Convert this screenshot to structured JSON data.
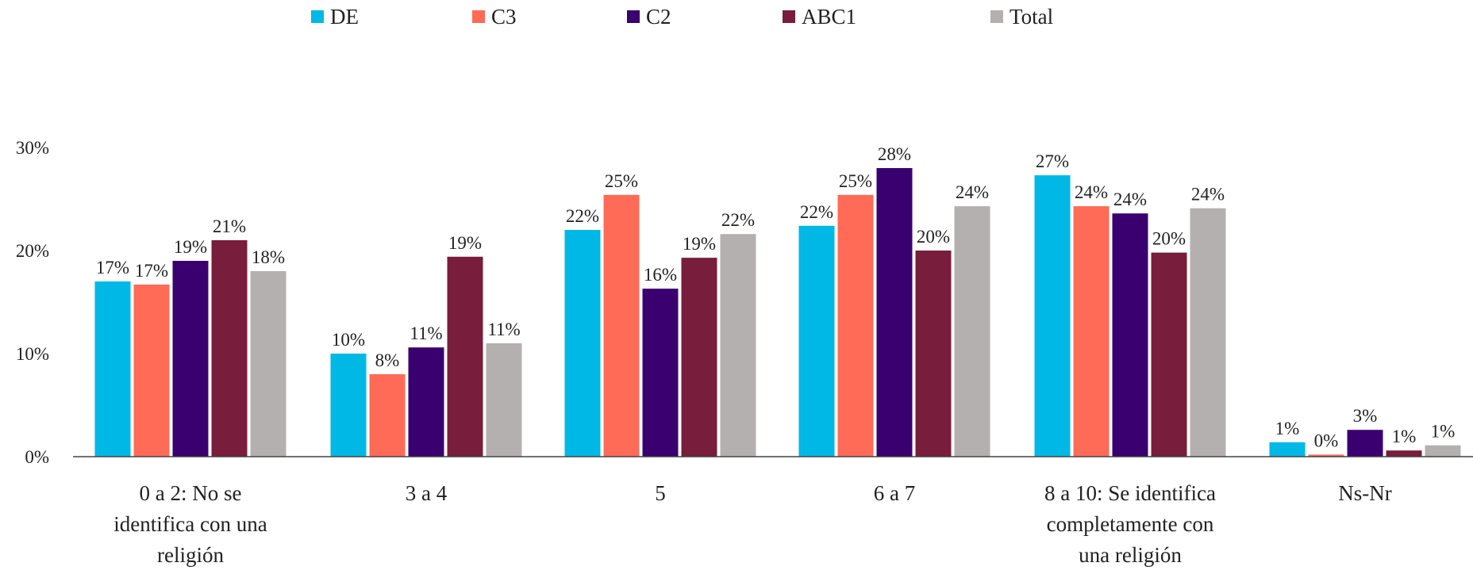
{
  "chart_data": {
    "type": "bar",
    "title": "",
    "xlabel": "",
    "ylabel": "",
    "ylim": [
      0,
      30
    ],
    "yticks": [
      0,
      10,
      20,
      30
    ],
    "ytick_labels": [
      "0%",
      "10%",
      "20%",
      "30%"
    ],
    "grid": false,
    "legend_position": "top",
    "categories": [
      [
        "0 a 2: No se",
        "identifica con una",
        "religión"
      ],
      [
        "3 a 4"
      ],
      [
        "5"
      ],
      [
        "6 a 7"
      ],
      [
        "8 a 10: Se identifica",
        "completamente con",
        "una religión"
      ],
      [
        "Ns-Nr"
      ]
    ],
    "series": [
      {
        "name": "DE",
        "color": "#00B8E6",
        "values": [
          17,
          10,
          22,
          22.4,
          27.3,
          1.4
        ],
        "labels": [
          "17%",
          "10%",
          "22%",
          "22%",
          "27%",
          "1%"
        ]
      },
      {
        "name": "C3",
        "color": "#FF6B57",
        "values": [
          16.7,
          8,
          25.4,
          25.4,
          24.3,
          0.2
        ],
        "labels": [
          "17%",
          "8%",
          "25%",
          "25%",
          "24%",
          "0%"
        ]
      },
      {
        "name": "C2",
        "color": "#3A0070",
        "values": [
          19,
          10.6,
          16.3,
          28,
          23.6,
          2.6
        ],
        "labels": [
          "19%",
          "11%",
          "16%",
          "28%",
          "24%",
          "3%"
        ]
      },
      {
        "name": "ABC1",
        "color": "#781D3C",
        "values": [
          21,
          19.4,
          19.3,
          20,
          19.8,
          0.6
        ],
        "labels": [
          "21%",
          "19%",
          "19%",
          "20%",
          "20%",
          "1%"
        ]
      },
      {
        "name": "Total",
        "color": "#B5B0B0",
        "values": [
          18,
          11,
          21.6,
          24.3,
          24.1,
          1.1
        ],
        "labels": [
          "18%",
          "11%",
          "22%",
          "24%",
          "24%",
          "1%"
        ]
      }
    ]
  }
}
